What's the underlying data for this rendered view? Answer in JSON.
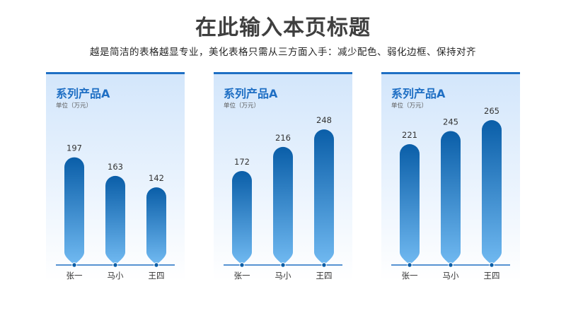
{
  "page": {
    "title": "在此输入本页标题",
    "subtitle": "越是简洁的表格越显专业，美化表格只需从三方面入手：减少配色、弱化边框、保持对齐"
  },
  "colors": {
    "accent": "#1f6fc4",
    "bar_top": "#0a5ea8",
    "bar_bottom": "#6fb8f0",
    "axis": "#1f6fc4"
  },
  "chart_data": [
    {
      "type": "bar",
      "title": "系列产品A",
      "unit_label": "单位（万元）",
      "categories": [
        "张一",
        "马小",
        "王四"
      ],
      "values": [
        197,
        163,
        142
      ],
      "ylim": [
        0,
        265
      ]
    },
    {
      "type": "bar",
      "title": "系列产品A",
      "unit_label": "单位（万元）",
      "categories": [
        "张一",
        "马小",
        "王四"
      ],
      "values": [
        172,
        216,
        248
      ],
      "ylim": [
        0,
        265
      ]
    },
    {
      "type": "bar",
      "title": "系列产品A",
      "unit_label": "单位（万元）",
      "categories": [
        "张一",
        "马小",
        "王四"
      ],
      "values": [
        221,
        245,
        265
      ],
      "ylim": [
        0,
        265
      ]
    }
  ]
}
